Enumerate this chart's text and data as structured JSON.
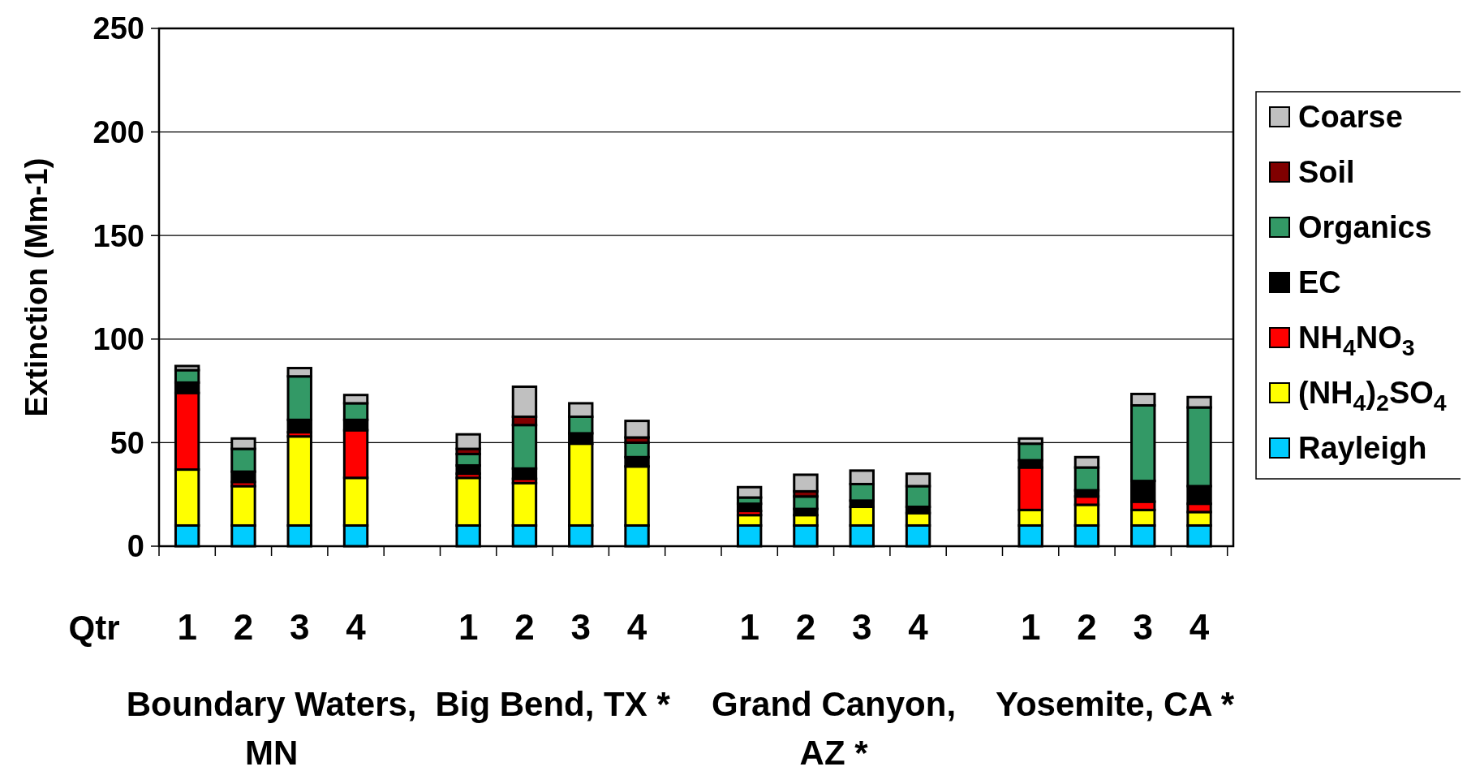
{
  "chart_data": {
    "type": "bar",
    "stacked": true,
    "ylabel": "Extinction (Mm-1)",
    "xlabel": "Qtr",
    "categories": [
      "1",
      "2",
      "3",
      "4",
      null,
      "1",
      "2",
      "3",
      "4",
      null,
      "1",
      "2",
      "3",
      "4",
      null,
      "1",
      "2",
      "3",
      "4"
    ],
    "annotations": [
      "Boundary Waters,\nMN",
      "Big Bend, TX *",
      "Grand Canyon,\nAZ *",
      "Yosemite, CA *"
    ],
    "ylim": [
      0,
      250
    ],
    "yticks": [
      0,
      50,
      100,
      150,
      200,
      250
    ],
    "grid": "y",
    "legend": "right",
    "series": [
      {
        "name": "Rayleigh",
        "color": "#00ccff",
        "values": [
          10,
          10,
          10,
          10,
          null,
          10,
          10,
          10,
          10,
          null,
          10,
          10,
          10,
          10,
          null,
          10,
          10,
          10,
          10
        ]
      },
      {
        "name": "(NH$_{4}$)$_{2}$SO$_{4}$",
        "color": "#ffff00",
        "values": [
          27,
          19,
          43,
          23,
          null,
          23,
          20.5,
          39.5,
          28.5,
          null,
          5,
          5,
          9,
          6,
          null,
          7.5,
          10,
          7.5,
          6.5
        ]
      },
      {
        "name": "NH$_{4}$NO$_{3}$",
        "color": "#ff0000",
        "values": [
          37,
          2,
          2,
          23,
          null,
          2,
          2,
          null,
          null,
          null,
          2,
          null,
          null,
          null,
          null,
          20.5,
          4,
          4,
          4
        ]
      },
      {
        "name": "EC",
        "color": "#000000",
        "values": [
          5,
          5,
          6,
          5,
          null,
          4,
          5,
          5,
          4.5,
          null,
          3.5,
          3,
          3,
          3,
          null,
          3.5,
          3,
          10,
          8.5
        ]
      },
      {
        "name": "Organics",
        "color": "#339966",
        "values": [
          6,
          11,
          21,
          8,
          null,
          5.5,
          21,
          8,
          7,
          null,
          3,
          6,
          8,
          10,
          null,
          8,
          11,
          36.5,
          38
        ]
      },
      {
        "name": "Soil",
        "color": "#800000",
        "values": [
          null,
          null,
          null,
          null,
          null,
          2.5,
          4,
          null,
          2.5,
          null,
          null,
          2.5,
          null,
          null,
          null,
          null,
          null,
          null,
          null
        ]
      },
      {
        "name": "Coarse",
        "color": "#c0c0c0",
        "values": [
          2,
          5,
          4,
          4,
          null,
          7,
          14.5,
          6.5,
          8,
          null,
          5,
          8,
          6.5,
          6,
          null,
          2.5,
          5,
          5.5,
          5
        ]
      }
    ]
  }
}
